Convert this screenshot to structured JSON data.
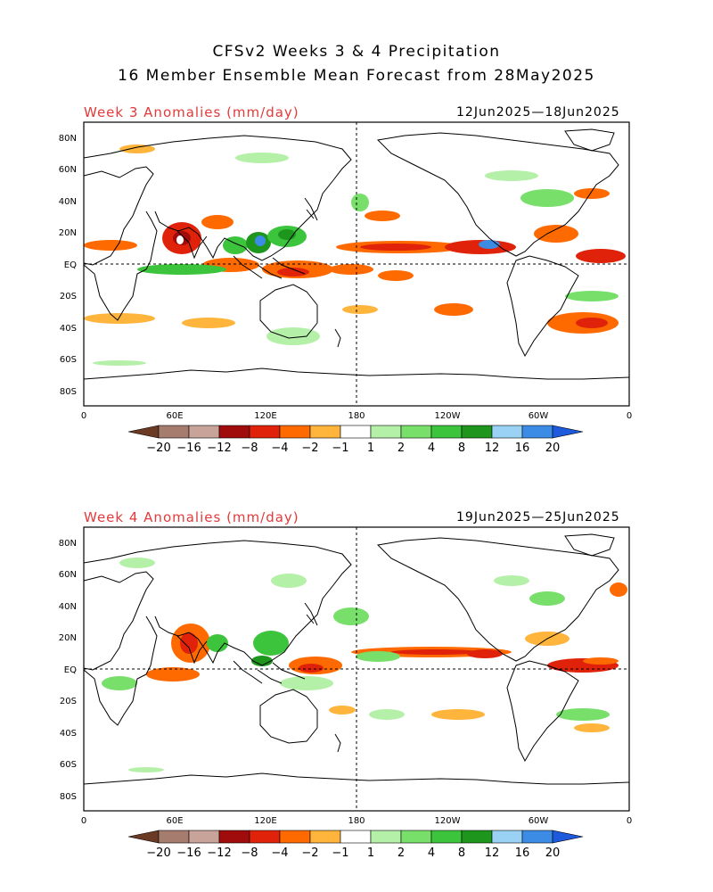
{
  "header": {
    "title_line1": "CFSv2 Weeks 3 & 4 Precipitation",
    "title_line2": "16 Member Ensemble Mean Forecast from 28May2025"
  },
  "panels": [
    {
      "label": "Week 3 Anomalies (mm/day)",
      "dates": "12Jun2025—18Jun2025"
    },
    {
      "label": "Week 4 Anomalies (mm/day)",
      "dates": "19Jun2025—25Jun2025"
    }
  ],
  "axes": {
    "lat_ticks": [
      "80N",
      "60N",
      "40N",
      "20N",
      "EQ",
      "20S",
      "40S",
      "60S",
      "80S"
    ],
    "lon_ticks": [
      "0",
      "60E",
      "120E",
      "180",
      "120W",
      "60W",
      "0"
    ]
  },
  "colorbar": {
    "tick_labels": [
      "-20",
      "-16",
      "-12",
      "-8",
      "-4",
      "-2",
      "-1",
      "1",
      "2",
      "4",
      "8",
      "12",
      "16",
      "20"
    ],
    "colors": [
      "#6b3a24",
      "#a67c6e",
      "#c8a39a",
      "#a00c0c",
      "#e0220a",
      "#ff6a00",
      "#ffb43c",
      "#ffffff",
      "#b4f0a8",
      "#78e06a",
      "#3cc43c",
      "#1e961e",
      "#9ad2f5",
      "#3c8ce6",
      "#1e5adc"
    ]
  }
}
